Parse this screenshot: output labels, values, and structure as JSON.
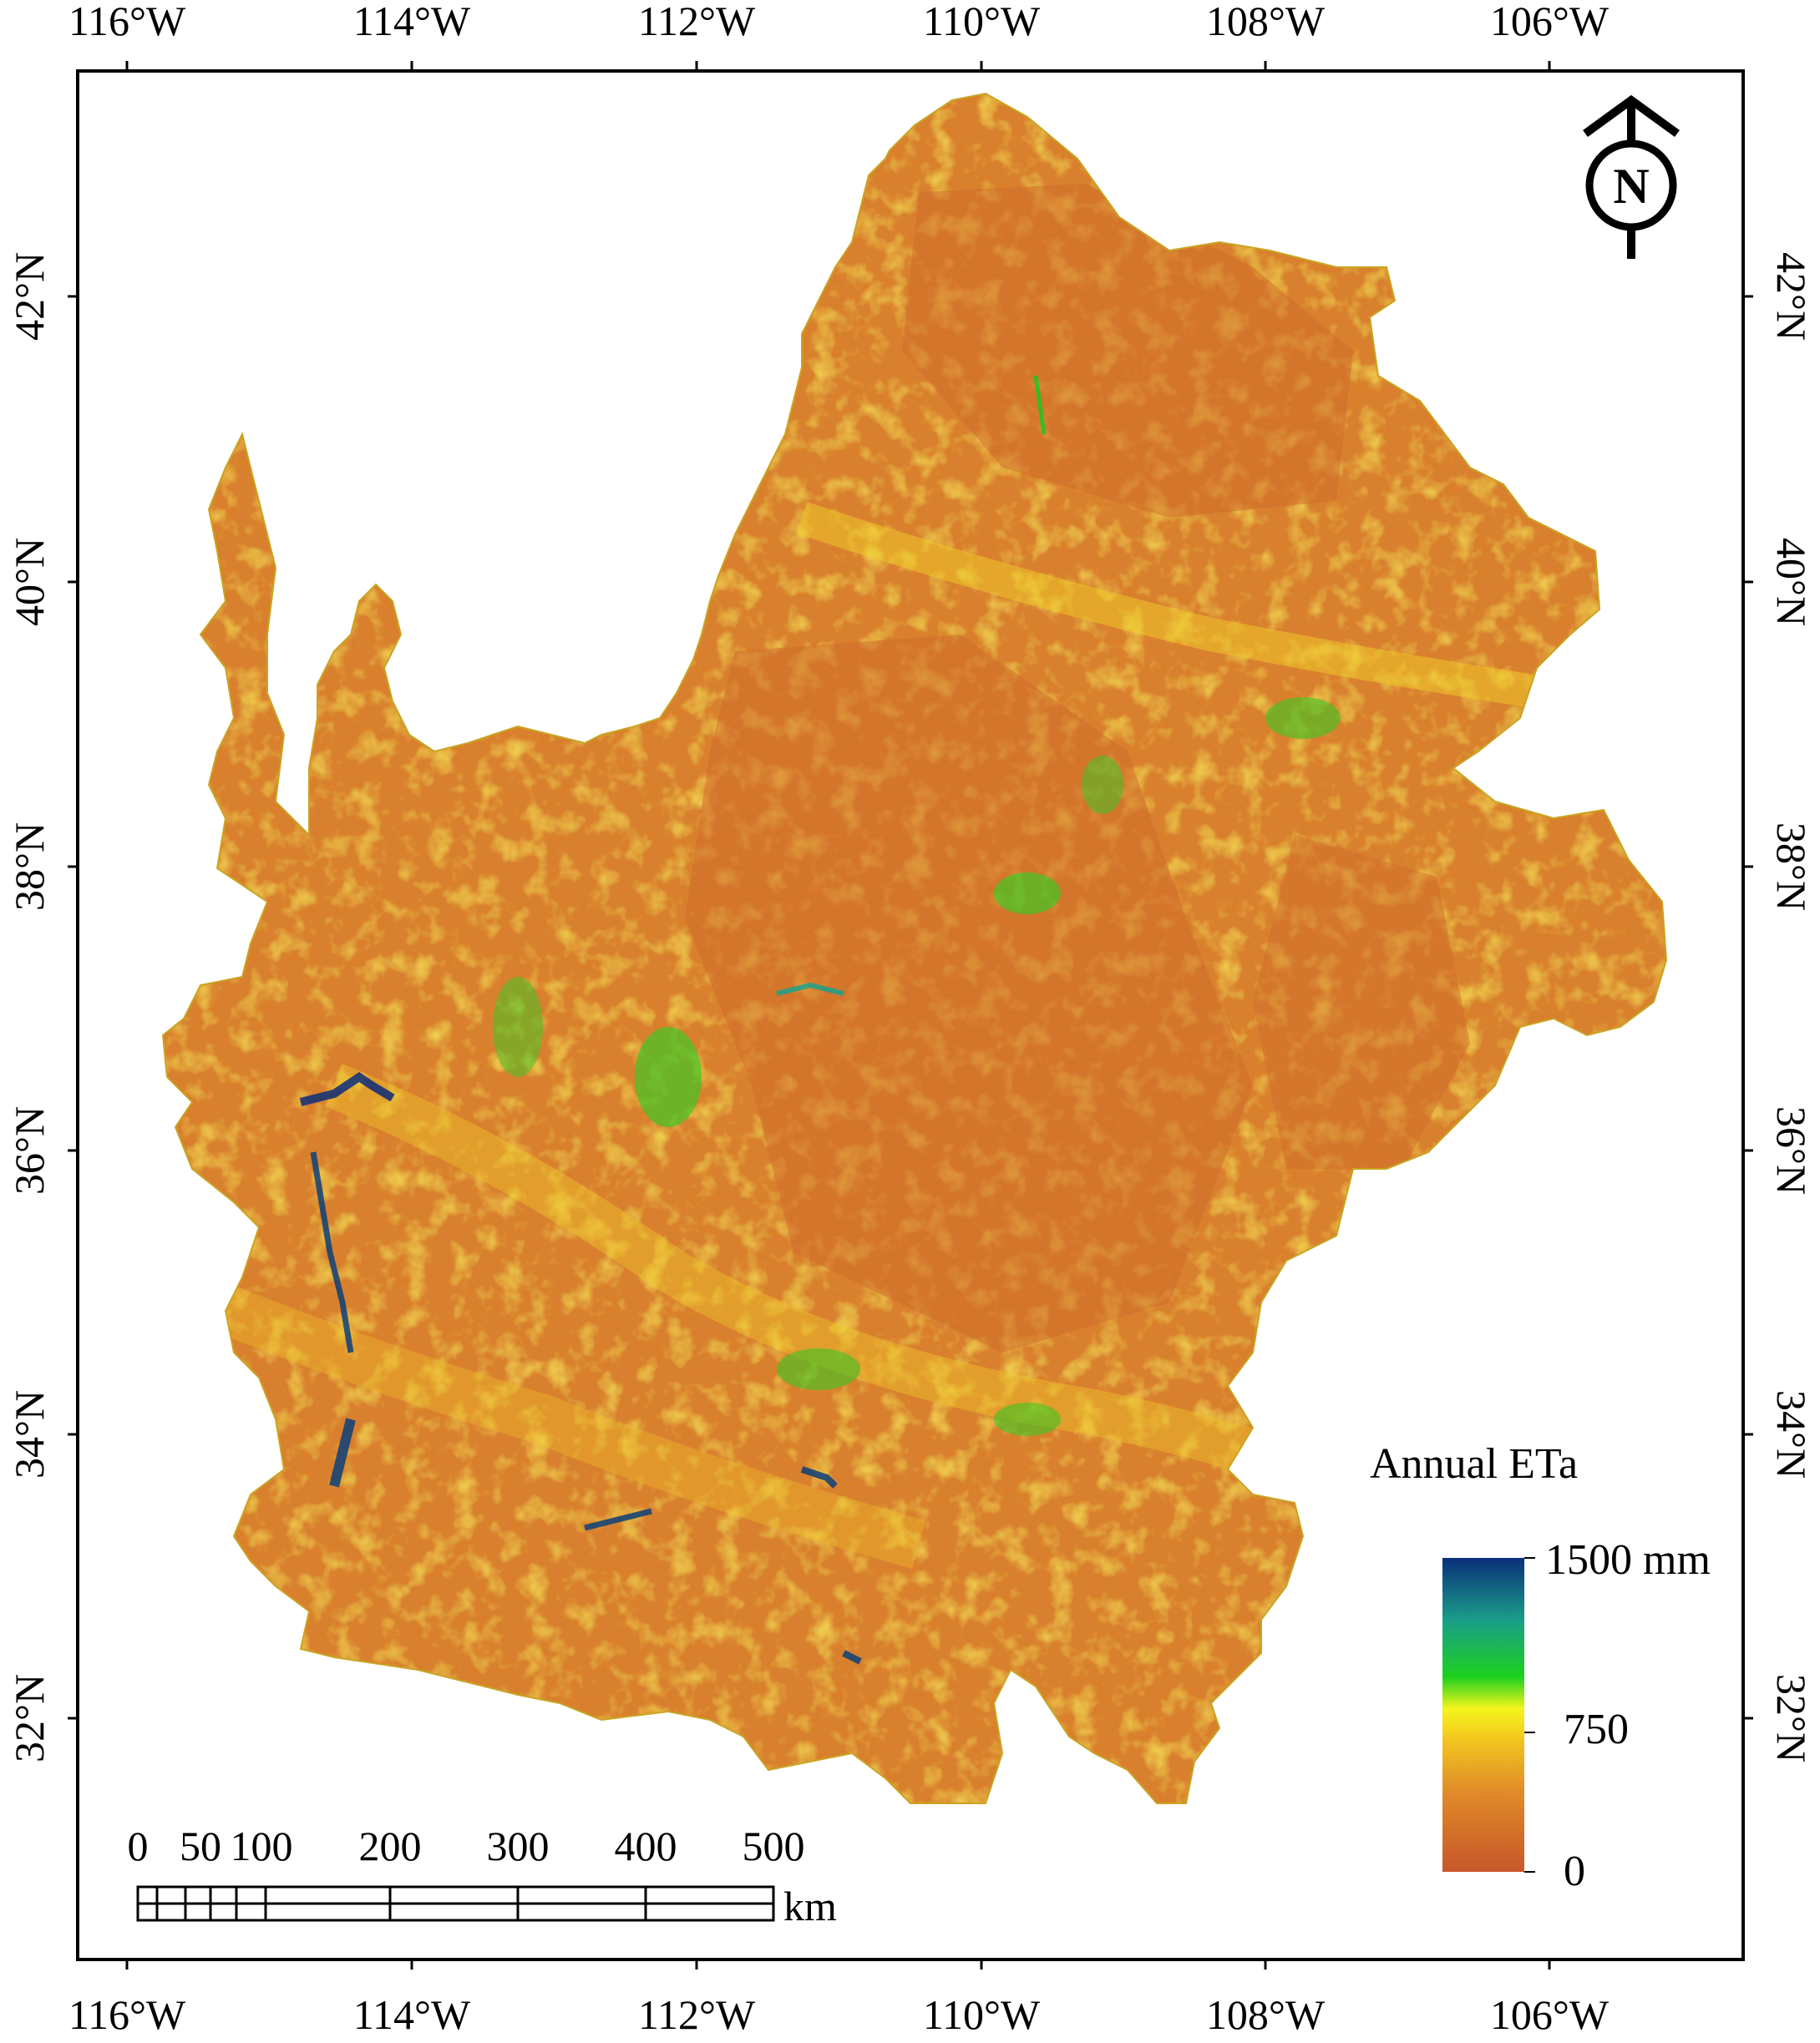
{
  "map": {
    "longitude_labels": [
      "116°W",
      "114°W",
      "112°W",
      "110°W",
      "108°W",
      "106°W"
    ],
    "latitude_labels": [
      "42°N",
      "40°N",
      "38°N",
      "36°N",
      "34°N",
      "32°N"
    ],
    "north_arrow_letter": "N",
    "legend": {
      "title": "Annual ETa",
      "max_label": "1500 mm",
      "mid_label": "750",
      "min_label": "0",
      "colors": [
        "#c8572a",
        "#e08a2a",
        "#f2c51e",
        "#f5f51c",
        "#1ed11e",
        "#1a9e8a",
        "#0b2f7a"
      ]
    },
    "scale_bar": {
      "labels": [
        "0",
        "50",
        "100",
        "200",
        "300",
        "400",
        "500"
      ],
      "unit": "km"
    },
    "region_fill": "#d9802e"
  }
}
